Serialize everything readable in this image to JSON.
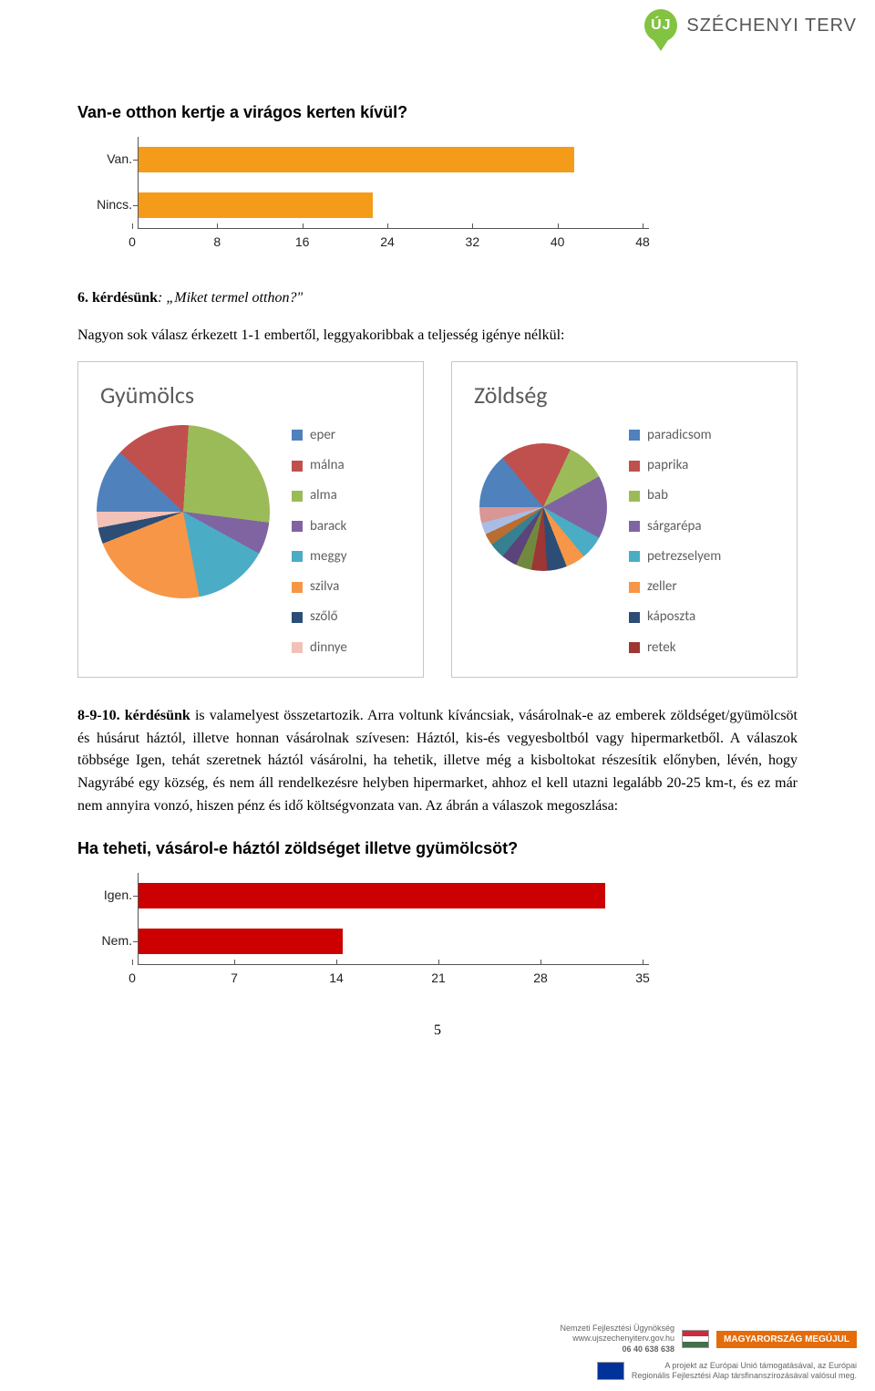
{
  "logo": {
    "uj": "ÚJ",
    "text": "SZÉCHENYI TERV"
  },
  "chart1": {
    "type": "bar-horizontal",
    "title": "Van-e otthon kertje a virágos kerten kívül?",
    "categories": [
      "Van.",
      "Nincs."
    ],
    "values": [
      41,
      22
    ],
    "x_max": 48,
    "x_tick_step": 8,
    "bar_color_van": "#f59b1a",
    "bar_color_nincs": "#f59b1a",
    "axis_color": "#555555",
    "tick_font": 14
  },
  "q6_heading": "6. kérdésünk",
  "q6_rest": ": „Miket termel otthon?\"",
  "q6_para": "Nagyon sok válasz érkezett 1-1 embertől, leggyakoribbak a teljesség igénye nélkül:",
  "pie1": {
    "type": "pie",
    "title": "Gyümölcs",
    "items": [
      {
        "label": "eper",
        "color": "#4f81bd",
        "value": 12
      },
      {
        "label": "málna",
        "color": "#c0504d",
        "value": 14
      },
      {
        "label": "alma",
        "color": "#9bbb59",
        "value": 26
      },
      {
        "label": "barack",
        "color": "#8064a2",
        "value": 6
      },
      {
        "label": "meggy",
        "color": "#4bacc6",
        "value": 14
      },
      {
        "label": "szilva",
        "color": "#f79646",
        "value": 22
      },
      {
        "label": "szőlő",
        "color": "#2c4d75",
        "value": 3
      },
      {
        "label": "dinnye",
        "color": "#f2c1b7",
        "value": 3
      }
    ]
  },
  "pie2": {
    "type": "pie",
    "title": "Zöldség",
    "items": [
      {
        "label": "paradicsom",
        "color": "#4f81bd",
        "value": 14
      },
      {
        "label": "paprika",
        "color": "#c0504d",
        "value": 18
      },
      {
        "label": "bab",
        "color": "#9bbb59",
        "value": 10
      },
      {
        "label": "sárgarépa",
        "color": "#8064a2",
        "value": 16
      },
      {
        "label": "petrezselyem",
        "color": "#4bacc6",
        "value": 6
      },
      {
        "label": "zeller",
        "color": "#f79646",
        "value": 5
      },
      {
        "label": "káposzta",
        "color": "#2c4d75",
        "value": 5
      },
      {
        "label": "retek",
        "color": "#9d3634",
        "value": 4
      },
      {
        "label": "",
        "color": "#71893f",
        "value": 4
      },
      {
        "label": "",
        "color": "#5a447a",
        "value": 4
      },
      {
        "label": "",
        "color": "#358091",
        "value": 4
      },
      {
        "label": "",
        "color": "#b96d30",
        "value": 3
      },
      {
        "label": "",
        "color": "#a9bde4",
        "value": 3
      },
      {
        "label": "",
        "color": "#d89694",
        "value": 4
      }
    ]
  },
  "body_par": "8-9-10. kérdésünk is valamelyest összetartozik. Arra voltunk kíváncsiak, vásárolnak-e az emberek zöldséget/gyümölcsöt és húsárut háztól, illetve honnan vásárolnak szívesen: Háztól, kis-és vegyesboltból vagy hipermarketből. A válaszok többsége Igen, tehát szeretnek háztól vásárolni, ha tehetik, illetve még a kisboltokat részesítik előnyben, lévén, hogy Nagyrábé egy község, és nem áll rendelkezésre helyben hipermarket, ahhoz el kell utazni legalább 20-25 km-t, és ez már nem annyira vonzó, hiszen pénz és idő költségvonzata van. Az ábrán a válaszok megoszlása:",
  "body_bold_lead": "8-9-10. kérdésünk",
  "chart2": {
    "type": "bar-horizontal",
    "title": "Ha teheti, vásárol-e háztól zöldséget illetve gyümölcsöt?",
    "categories": [
      "Igen.",
      "Nem."
    ],
    "values": [
      32,
      14
    ],
    "x_max": 35,
    "x_tick_step": 7,
    "bar_color": "#cc0000"
  },
  "page_number": "5",
  "footer": {
    "line1": "Nemzeti Fejlesztési Ügynökség",
    "line2": "www.ujszechenyiterv.gov.hu",
    "line3": "06 40 638 638",
    "badge": "MAGYARORSZÁG MEGÚJUL",
    "line4": "A projekt az Európai Unió támogatásával, az Európai",
    "line5": "Regionális Fejlesztési Alap társfinanszírozásával valósul meg."
  }
}
